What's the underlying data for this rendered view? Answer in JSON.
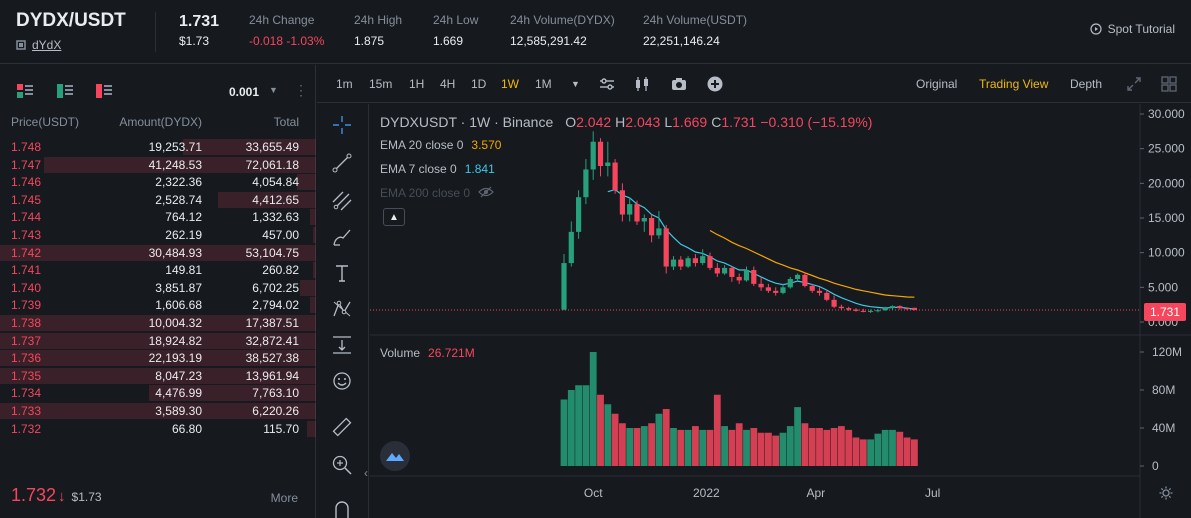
{
  "header": {
    "pair": "DYDX/USDT",
    "coin_name": "dYdX",
    "last_price": "1.731",
    "last_price_usd": "$1.73",
    "stats": [
      {
        "label": "24h Change",
        "value": "-0.018 -1.03%",
        "color": "#f6465d"
      },
      {
        "label": "24h High",
        "value": "1.875"
      },
      {
        "label": "24h Low",
        "value": "1.669"
      },
      {
        "label": "24h Volume(DYDX)",
        "value": "12,585,291.42"
      },
      {
        "label": "24h Volume(USDT)",
        "value": "22,251,146.24"
      }
    ],
    "tutorial_label": "Spot Tutorial"
  },
  "orderbook": {
    "precision": "0.001",
    "columns": {
      "price": "Price(USDT)",
      "amount": "Amount(DYDX)",
      "total": "Total"
    },
    "asks": [
      {
        "price": "1.748",
        "amount": "19,253.71",
        "total": "33,655.49",
        "depth": 0.42
      },
      {
        "price": "1.747",
        "amount": "41,248.53",
        "total": "72,061.18",
        "depth": 0.86
      },
      {
        "price": "1.746",
        "amount": "2,322.36",
        "total": "4,054.84",
        "depth": 0.06
      },
      {
        "price": "1.745",
        "amount": "2,528.74",
        "total": "4,412.65",
        "depth": 0.31
      },
      {
        "price": "1.744",
        "amount": "764.12",
        "total": "1,332.63",
        "depth": 0.02
      },
      {
        "price": "1.743",
        "amount": "262.19",
        "total": "457.00",
        "depth": 0.01
      },
      {
        "price": "1.742",
        "amount": "30,484.93",
        "total": "53,104.75",
        "depth": 1.0
      },
      {
        "price": "1.741",
        "amount": "149.81",
        "total": "260.82",
        "depth": 0.01
      },
      {
        "price": "1.740",
        "amount": "3,851.87",
        "total": "6,702.25",
        "depth": 0.05
      },
      {
        "price": "1.739",
        "amount": "1,606.68",
        "total": "2,794.02",
        "depth": 0.02
      },
      {
        "price": "1.738",
        "amount": "10,004.32",
        "total": "17,387.51",
        "depth": 1.0
      },
      {
        "price": "1.737",
        "amount": "18,924.82",
        "total": "32,872.41",
        "depth": 1.0
      },
      {
        "price": "1.736",
        "amount": "22,193.19",
        "total": "38,527.38",
        "depth": 1.0
      },
      {
        "price": "1.735",
        "amount": "8,047.23",
        "total": "13,961.94",
        "depth": 1.0
      },
      {
        "price": "1.734",
        "amount": "4,476.99",
        "total": "7,763.10",
        "depth": 0.53
      },
      {
        "price": "1.733",
        "amount": "3,589.30",
        "total": "6,220.26",
        "depth": 1.0
      },
      {
        "price": "1.732",
        "amount": "66.80",
        "total": "115.70",
        "depth": 0.03
      }
    ],
    "last_price": "1.732",
    "last_arrow": "↓",
    "last_price_usd": "$1.73",
    "more_label": "More"
  },
  "toolbar": {
    "intervals": [
      "1m",
      "15m",
      "1H",
      "4H",
      "1D",
      "1W",
      "1M"
    ],
    "active_interval": "1W",
    "views": [
      "Original",
      "Trading View",
      "Depth"
    ],
    "active_view": "Trading View"
  },
  "chart": {
    "symbol": "DYDXUSDT · 1W · Binance",
    "ohlc": [
      {
        "k": "O",
        "v": "2.042"
      },
      {
        "k": "H",
        "v": "2.043"
      },
      {
        "k": "L",
        "v": "1.669"
      },
      {
        "k": "C",
        "v": "1.731"
      }
    ],
    "change": "−0.310 (−15.19%)",
    "ema20": {
      "label": "EMA 20 close 0",
      "value": "3.570",
      "color": "#f7a600"
    },
    "ema7": {
      "label": "EMA 7 close 0",
      "value": "1.841",
      "color": "#3cc8e6"
    },
    "ema200": {
      "label": "EMA 200 close 0"
    },
    "volume_label": "Volume",
    "volume_value": "26.721M",
    "price_tag": "1.731",
    "up_color": "#26a17b",
    "down_color": "#f6465d"
  },
  "chart_data": {
    "type": "candlestick",
    "title": "DYDXUSDT · 1W · Binance",
    "y_ticks": [
      "30.000",
      "25.000",
      "20.000",
      "15.000",
      "10.000",
      "5.000",
      "0.000"
    ],
    "ylim": [
      0,
      30
    ],
    "x_ticks": [
      "Oct",
      "2022",
      "Apr",
      "Jul"
    ],
    "volume_ticks": [
      "120M",
      "80M",
      "40M",
      "0"
    ],
    "volume_ylim": [
      0,
      120
    ],
    "candles": [
      {
        "o": 1.8,
        "h": 9.8,
        "l": 1.7,
        "c": 8.5
      },
      {
        "o": 8.5,
        "h": 14.5,
        "l": 8.0,
        "c": 13.0
      },
      {
        "o": 13.0,
        "h": 19.0,
        "l": 12.0,
        "c": 18.0
      },
      {
        "o": 18.0,
        "h": 23.5,
        "l": 17.0,
        "c": 22.0
      },
      {
        "o": 22.0,
        "h": 27.5,
        "l": 20.5,
        "c": 26.0
      },
      {
        "o": 26.0,
        "h": 26.5,
        "l": 21.0,
        "c": 22.5
      },
      {
        "o": 22.5,
        "h": 26.0,
        "l": 21.0,
        "c": 23.0
      },
      {
        "o": 23.0,
        "h": 23.5,
        "l": 18.5,
        "c": 19.0
      },
      {
        "o": 19.0,
        "h": 20.0,
        "l": 14.5,
        "c": 15.5
      },
      {
        "o": 15.5,
        "h": 18.0,
        "l": 14.5,
        "c": 17.0
      },
      {
        "o": 17.0,
        "h": 17.5,
        "l": 14.0,
        "c": 14.5
      },
      {
        "o": 14.5,
        "h": 15.5,
        "l": 13.0,
        "c": 15.0
      },
      {
        "o": 15.0,
        "h": 15.5,
        "l": 11.5,
        "c": 12.5
      },
      {
        "o": 12.5,
        "h": 16.0,
        "l": 12.0,
        "c": 13.5
      },
      {
        "o": 13.5,
        "h": 14.0,
        "l": 7.0,
        "c": 8.0
      },
      {
        "o": 8.0,
        "h": 9.5,
        "l": 7.5,
        "c": 9.0
      },
      {
        "o": 9.0,
        "h": 9.5,
        "l": 7.5,
        "c": 8.0
      },
      {
        "o": 8.0,
        "h": 9.5,
        "l": 7.8,
        "c": 9.2
      },
      {
        "o": 9.2,
        "h": 9.8,
        "l": 8.0,
        "c": 8.5
      },
      {
        "o": 8.5,
        "h": 10.5,
        "l": 8.2,
        "c": 9.5
      },
      {
        "o": 9.5,
        "h": 10.0,
        "l": 7.5,
        "c": 7.8
      },
      {
        "o": 7.8,
        "h": 8.5,
        "l": 6.5,
        "c": 7.0
      },
      {
        "o": 7.0,
        "h": 8.2,
        "l": 6.8,
        "c": 7.8
      },
      {
        "o": 7.8,
        "h": 8.0,
        "l": 5.8,
        "c": 6.5
      },
      {
        "o": 6.5,
        "h": 7.0,
        "l": 5.5,
        "c": 6.0
      },
      {
        "o": 6.0,
        "h": 8.0,
        "l": 5.8,
        "c": 7.5
      },
      {
        "o": 7.5,
        "h": 8.0,
        "l": 5.2,
        "c": 5.5
      },
      {
        "o": 5.5,
        "h": 6.5,
        "l": 4.5,
        "c": 5.0
      },
      {
        "o": 5.0,
        "h": 5.5,
        "l": 4.2,
        "c": 4.5
      },
      {
        "o": 4.5,
        "h": 5.0,
        "l": 3.8,
        "c": 4.2
      },
      {
        "o": 4.2,
        "h": 5.5,
        "l": 4.0,
        "c": 5.0
      },
      {
        "o": 5.0,
        "h": 6.5,
        "l": 4.8,
        "c": 6.2
      },
      {
        "o": 6.2,
        "h": 7.0,
        "l": 6.0,
        "c": 6.8
      },
      {
        "o": 6.8,
        "h": 7.2,
        "l": 5.0,
        "c": 5.2
      },
      {
        "o": 5.2,
        "h": 5.5,
        "l": 4.2,
        "c": 4.5
      },
      {
        "o": 4.5,
        "h": 5.0,
        "l": 3.8,
        "c": 4.2
      },
      {
        "o": 4.2,
        "h": 4.5,
        "l": 3.0,
        "c": 3.2
      },
      {
        "o": 3.2,
        "h": 3.8,
        "l": 2.0,
        "c": 2.2
      },
      {
        "o": 2.2,
        "h": 2.5,
        "l": 1.8,
        "c": 2.0
      },
      {
        "o": 2.0,
        "h": 2.2,
        "l": 1.6,
        "c": 1.8
      },
      {
        "o": 1.8,
        "h": 2.0,
        "l": 1.5,
        "c": 1.6
      },
      {
        "o": 1.6,
        "h": 1.9,
        "l": 1.4,
        "c": 1.5
      },
      {
        "o": 1.5,
        "h": 1.8,
        "l": 1.3,
        "c": 1.6
      },
      {
        "o": 1.6,
        "h": 1.9,
        "l": 1.4,
        "c": 1.7
      },
      {
        "o": 1.7,
        "h": 2.2,
        "l": 1.6,
        "c": 2.0
      },
      {
        "o": 2.0,
        "h": 2.4,
        "l": 1.7,
        "c": 2.3
      },
      {
        "o": 2.3,
        "h": 2.4,
        "l": 1.8,
        "c": 2.0
      },
      {
        "o": 2.0,
        "h": 2.1,
        "l": 1.7,
        "c": 1.9
      },
      {
        "o": 2.042,
        "h": 2.043,
        "l": 1.669,
        "c": 1.731
      }
    ],
    "volume": [
      70,
      80,
      85,
      85,
      120,
      75,
      65,
      55,
      45,
      40,
      40,
      42,
      45,
      55,
      60,
      40,
      38,
      38,
      42,
      38,
      38,
      75,
      42,
      38,
      45,
      38,
      40,
      35,
      35,
      32,
      35,
      42,
      62,
      45,
      40,
      40,
      38,
      40,
      42,
      38,
      30,
      28,
      28,
      34,
      38,
      38,
      36,
      30,
      28
    ],
    "ema20": [
      null,
      null,
      null,
      null,
      null,
      null,
      null,
      null,
      null,
      null,
      null,
      null,
      null,
      null,
      null,
      null,
      null,
      null,
      null,
      null,
      13.2,
      12.6,
      12.1,
      11.5,
      11.0,
      10.6,
      10.1,
      9.6,
      9.1,
      8.6,
      8.2,
      7.8,
      7.5,
      7.1,
      6.7,
      6.3,
      6.0,
      5.6,
      5.3,
      5.0,
      4.7,
      4.5,
      4.3,
      4.1,
      3.9,
      3.8,
      3.7,
      3.6,
      3.57
    ],
    "ema7": [
      null,
      null,
      null,
      null,
      null,
      null,
      18.8,
      19.1,
      18.3,
      17.9,
      17.0,
      16.5,
      15.5,
      15.0,
      13.3,
      12.2,
      11.2,
      10.7,
      10.1,
      9.9,
      9.4,
      8.8,
      8.5,
      8.0,
      7.5,
      7.5,
      7.0,
      6.5,
      6.0,
      5.6,
      5.4,
      5.6,
      5.9,
      5.7,
      5.4,
      5.1,
      4.6,
      4.0,
      3.5,
      3.1,
      2.7,
      2.4,
      2.2,
      2.1,
      2.0,
      2.1,
      2.1,
      2.0,
      1.841
    ]
  }
}
